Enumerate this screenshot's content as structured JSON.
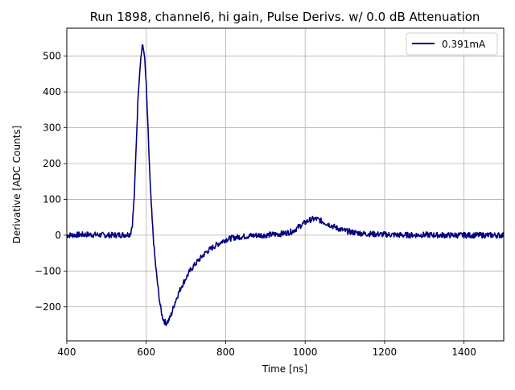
{
  "chart_data": {
    "type": "line",
    "title": "Run 1898, channel6, hi gain, Pulse Derivs. w/ 0.0 dB Attenuation",
    "xlabel": "Time [ns]",
    "ylabel": "Derivative [ADC Counts]",
    "xlim": [
      400,
      1500
    ],
    "ylim": [
      -295,
      578
    ],
    "xticks": [
      400,
      600,
      800,
      1000,
      1200,
      1400
    ],
    "yticks": [
      -200,
      -100,
      0,
      100,
      200,
      300,
      400,
      500
    ],
    "xtick_labels": [
      "400",
      "600",
      "800",
      "1000",
      "1200",
      "1400"
    ],
    "ytick_labels": [
      "−200",
      "−100",
      "0",
      "100",
      "200",
      "300",
      "400",
      "500"
    ],
    "grid": true,
    "legend_position": "top-right",
    "series": [
      {
        "name": "0.391mA",
        "color": "#000080",
        "x": [
          400,
          450,
          500,
          540,
          560,
          565,
          570,
          575,
          580,
          585,
          590,
          595,
          600,
          605,
          610,
          615,
          620,
          625,
          630,
          635,
          640,
          645,
          650,
          655,
          660,
          665,
          670,
          680,
          690,
          700,
          710,
          720,
          730,
          740,
          750,
          760,
          770,
          780,
          790,
          800,
          820,
          840,
          860,
          880,
          900,
          920,
          940,
          960,
          970,
          980,
          990,
          1000,
          1010,
          1020,
          1030,
          1040,
          1050,
          1060,
          1070,
          1080,
          1100,
          1120,
          1150,
          1200,
          1250,
          1300,
          1350,
          1400,
          1450,
          1500
        ],
        "y": [
          0,
          2,
          0,
          1,
          3,
          30,
          110,
          260,
          400,
          480,
          530,
          510,
          420,
          280,
          140,
          40,
          -40,
          -100,
          -150,
          -195,
          -225,
          -240,
          -245,
          -240,
          -230,
          -215,
          -195,
          -165,
          -140,
          -120,
          -100,
          -85,
          -72,
          -60,
          -48,
          -40,
          -32,
          -25,
          -18,
          -12,
          -7,
          -4,
          -2,
          0,
          0,
          2,
          4,
          8,
          12,
          20,
          28,
          35,
          42,
          45,
          45,
          40,
          35,
          30,
          25,
          20,
          12,
          8,
          4,
          2,
          0,
          1,
          0,
          0,
          0,
          0
        ]
      }
    ]
  }
}
